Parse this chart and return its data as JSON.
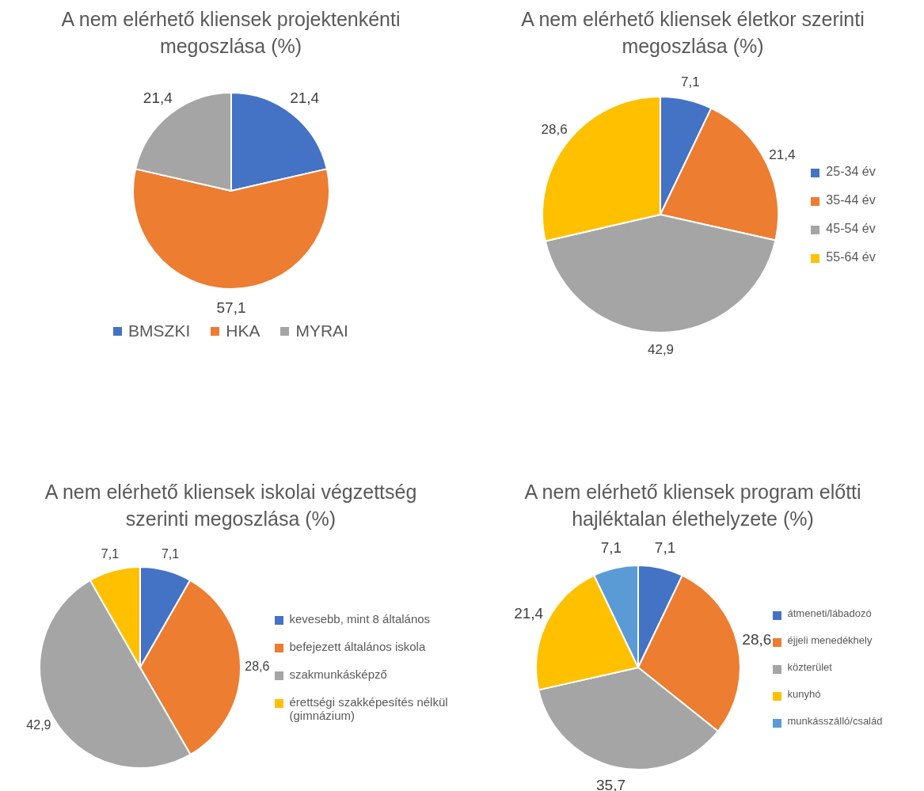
{
  "chart_data": [
    {
      "type": "pie",
      "title": "A nem elérhető kliensek projektenkénti megoszlása (%)",
      "categories": [
        "BMSZKI",
        "HKA",
        "MYRAI"
      ],
      "values": [
        21.4,
        57.1,
        21.4
      ],
      "value_labels": [
        "21,4",
        "57,1",
        "21,4"
      ],
      "colors": [
        "#4472c4",
        "#ed7d31",
        "#a5a5a5"
      ],
      "legend": "bottom"
    },
    {
      "type": "pie",
      "title": "A nem elérhető kliensek életkor szerinti megoszlása (%)",
      "categories": [
        "25-34 év",
        "35-44 év",
        "45-54 év",
        "55-64 év"
      ],
      "values": [
        7.1,
        21.4,
        42.9,
        28.6
      ],
      "value_labels": [
        "7,1",
        "21,4",
        "42,9",
        "28,6"
      ],
      "colors": [
        "#4472c4",
        "#ed7d31",
        "#a5a5a5",
        "#ffc000"
      ],
      "legend": "right"
    },
    {
      "type": "pie",
      "title": "A nem elérhető kliensek iskolai végzettség szerinti megoszlása (%)",
      "categories": [
        "kevesebb, mint 8 általános",
        "befejezett általános iskola",
        "szakmunkásképző",
        "érettségi szakképesítés nélkül (gimnázium)"
      ],
      "values": [
        7.1,
        28.6,
        42.9,
        7.1
      ],
      "value_labels": [
        "7,1",
        "28,6",
        "42,9",
        "7,1"
      ],
      "colors": [
        "#4472c4",
        "#ed7d31",
        "#a5a5a5",
        "#ffc000"
      ],
      "legend": "right"
    },
    {
      "type": "pie",
      "title": "A nem elérhető kliensek program előtti hajléktalan élethelyzete (%)",
      "categories": [
        "átmeneti/lábadozó",
        "éjjeli menedékhely",
        "közterület",
        "kunyhó",
        "munkásszálló/család"
      ],
      "values": [
        7.1,
        28.6,
        35.7,
        21.4,
        7.1
      ],
      "value_labels": [
        "7,1",
        "28,6",
        "35,7",
        "21,4",
        "7,1"
      ],
      "colors": [
        "#4472c4",
        "#ed7d31",
        "#a5a5a5",
        "#ffc000",
        "#5b9bd5"
      ],
      "legend": "right"
    }
  ]
}
